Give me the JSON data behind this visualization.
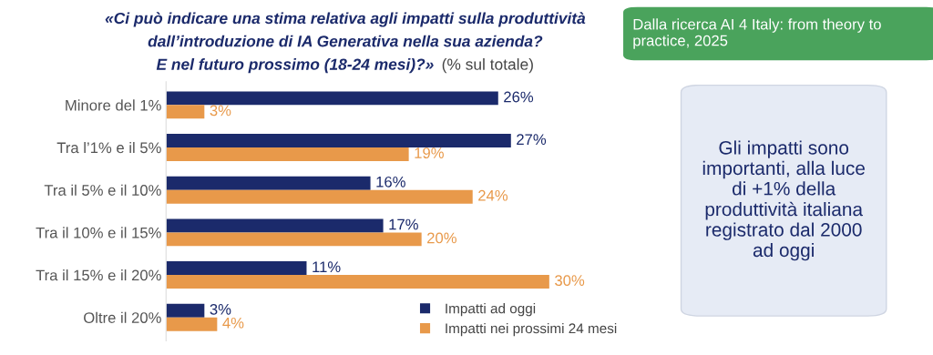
{
  "chart_data": {
    "type": "bar",
    "orientation": "horizontal",
    "title": "«Ci può indicare una stima relativa agli impatti sulla produttività\ndall’introduzione di IA Generativa nella sua azienda?\nE nel futuro prossimo (18-24 mesi)?»",
    "subtitle": "(% sul totale)",
    "categories": [
      "Minore del 1%",
      "Tra l’1% e il 5%",
      "Tra il 5% e il 10%",
      "Tra il 10% e il 15%",
      "Tra il 15% e il 20%",
      "Oltre il 20%"
    ],
    "series": [
      {
        "name": "Impatti ad oggi",
        "color": "#1b2a6b",
        "values": [
          26,
          27,
          16,
          17,
          11,
          3
        ],
        "value_labels": [
          "26%",
          "27%",
          "16%",
          "17%",
          "11%",
          "3%"
        ]
      },
      {
        "name": "Impatti nei prossimi 24 mesi",
        "color": "#e8994a",
        "values": [
          3,
          19,
          24,
          20,
          30,
          4
        ],
        "value_labels": [
          "3%",
          "19%",
          "24%",
          "20%",
          "30%",
          "4%"
        ]
      }
    ],
    "legend": "bottom right",
    "grid": false,
    "annotations": [
      "Dalla ricerca AI 4 Italy: from theory to practice, 2025",
      "Gli impatti sono importanti, alla luce di +1% della produttività italiana registrato dal 2000 ad oggi"
    ]
  }
}
